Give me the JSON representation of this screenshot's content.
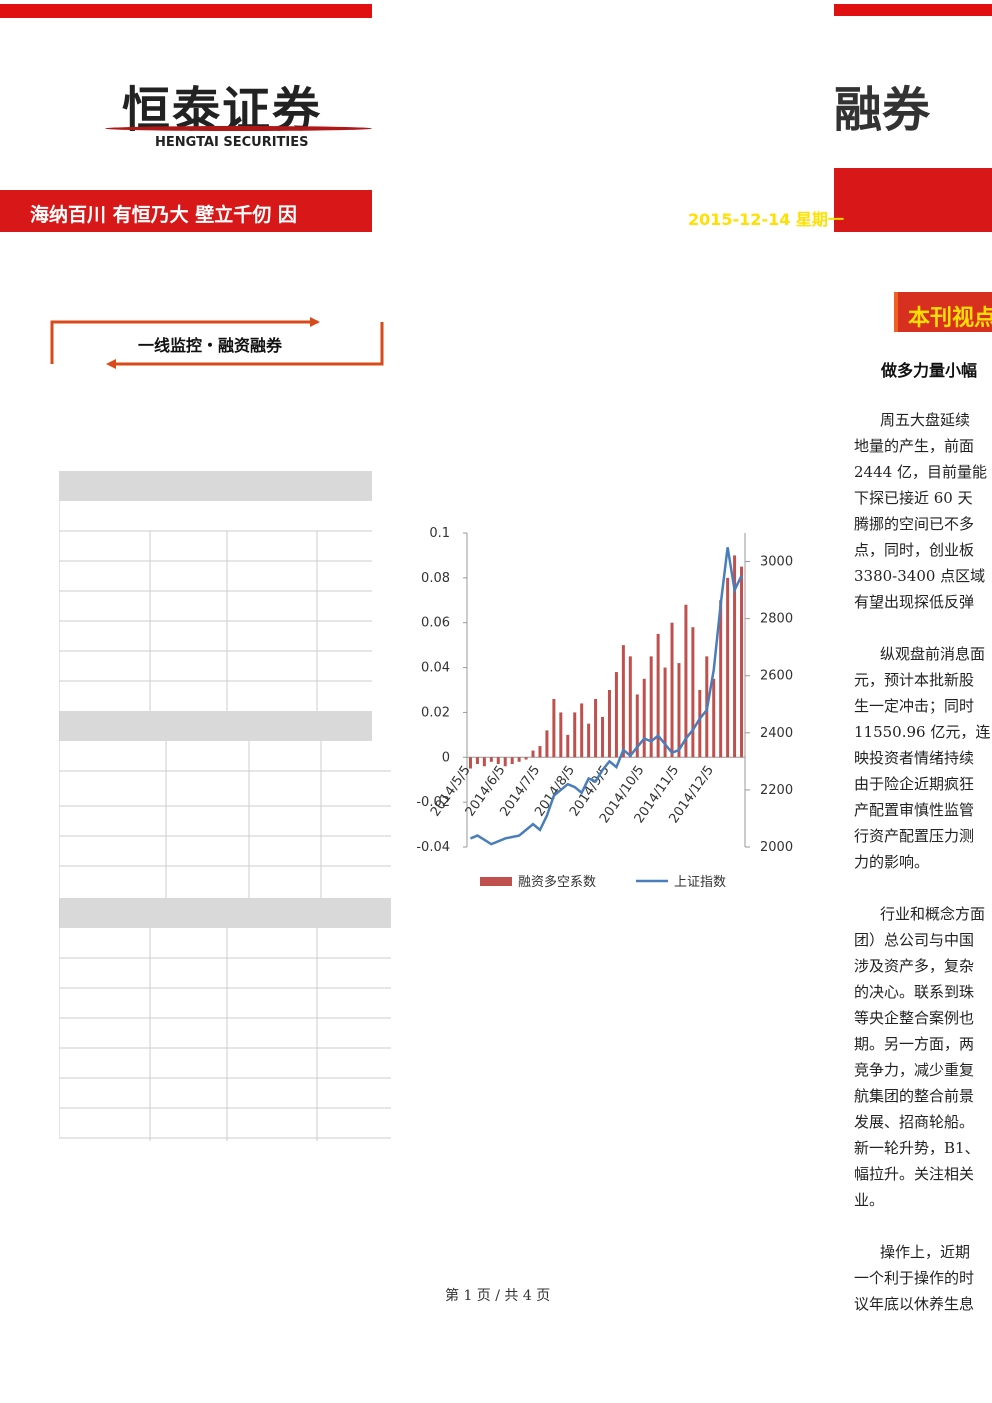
{
  "header": {
    "logo": "恒泰证券",
    "logo_en": "HENGTAI SECURITIES",
    "slogan": "海纳百川 有恒乃大  壁立千仞 因",
    "right_logo": "融券",
    "date": "2015-12-14 星期一"
  },
  "box_label": "一线监控・融资融券",
  "section_tag": "本刊视点",
  "chart_data": {
    "type": "bar-line",
    "categories": [
      "2014/5/5",
      null,
      null,
      null,
      null,
      "2014/6/5",
      null,
      null,
      null,
      null,
      "2014/7/5",
      null,
      null,
      null,
      null,
      "2014/8/5",
      null,
      null,
      null,
      null,
      "2014/9/5",
      null,
      null,
      null,
      null,
      "2014/10/5",
      null,
      null,
      null,
      null,
      "2014/11/5",
      null,
      null,
      null,
      null,
      "2014/12/5",
      null,
      null,
      null,
      null
    ],
    "series": [
      {
        "name": "融资多空系数",
        "color": "#c0504d",
        "values": [
          -0.005,
          -0.003,
          -0.004,
          -0.002,
          -0.003,
          -0.004,
          -0.003,
          -0.002,
          -0.001,
          0.003,
          0.005,
          0.012,
          0.026,
          0.02,
          0.01,
          0.02,
          0.024,
          0.015,
          0.026,
          0.018,
          0.03,
          0.038,
          0.05,
          0.045,
          0.028,
          0.035,
          0.045,
          0.055,
          0.04,
          0.06,
          0.042,
          0.068,
          0.058,
          0.03,
          0.045,
          0.035,
          0.07,
          0.08,
          0.09,
          0.085
        ]
      },
      {
        "name": "上证指数",
        "color": "#4a7ebb",
        "axis": "y2",
        "values": [
          2030,
          2040,
          2025,
          2010,
          2020,
          2030,
          2035,
          2040,
          2060,
          2080,
          2060,
          2110,
          2180,
          2200,
          2220,
          2210,
          2190,
          2240,
          2230,
          2270,
          2300,
          2280,
          2340,
          2320,
          2350,
          2380,
          2370,
          2390,
          2360,
          2330,
          2340,
          2380,
          2410,
          2450,
          2480,
          2620,
          2850,
          3050,
          2900,
          2950
        ]
      }
    ],
    "ylim": [
      -0.04,
      0.1
    ],
    "yticks": [
      -0.04,
      -0.02,
      0,
      0.02,
      0.04,
      0.06,
      0.08,
      0.1
    ],
    "y2lim": [
      2000,
      3100
    ],
    "y2ticks": [
      2000,
      2200,
      2400,
      2600,
      2800,
      3000
    ]
  },
  "article": {
    "heading": "做多力量小幅",
    "paragraphs": [
      [
        "周五大盘延续",
        "地量的产生，前面",
        "2444 亿，目前量能",
        "下探已接近 60 天",
        "腾挪的空间已不多",
        "点，同时，创业板",
        "3380-3400 点区域",
        "有望出现探低反弹"
      ],
      [
        "纵观盘前消息面",
        "元，预计本批新股",
        "生一定冲击；同时",
        "11550.96 亿元，连",
        "映投资者情绪持续",
        "由于险企近期疯狂",
        "产配置审慎性监管",
        "行资产配置压力测",
        "力的影响。"
      ],
      [
        "行业和概念方面",
        "团）总公司与中国",
        "涉及资产多，复杂",
        "的决心。联系到珠",
        "等央企整合案例也",
        "期。另一方面，两",
        "竞争力，减少重复",
        "航集团的整合前景",
        "发展、招商轮船。",
        "新一轮升势，B1、",
        "幅拉升。关注相关",
        "业。"
      ],
      [
        "操作上，近期",
        "一个利于操作的时",
        "议年底以休养生息"
      ]
    ]
  },
  "footer": "第 1 页 / 共 4 页"
}
